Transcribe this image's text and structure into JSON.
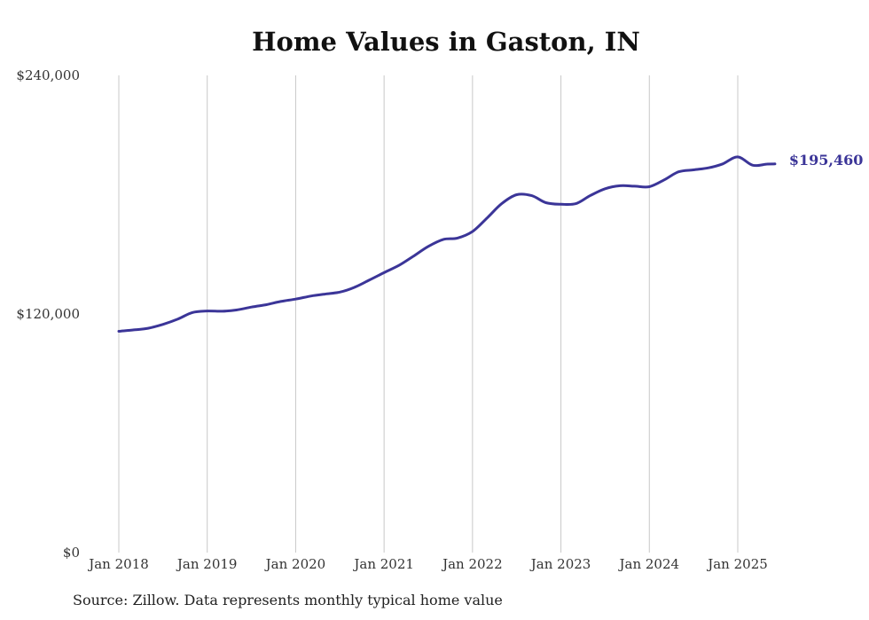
{
  "chart_data": {
    "type": "line",
    "title": "Home Values in Gaston, IN",
    "xlabel": "",
    "ylabel": "",
    "x_ticks": [
      {
        "label": "Jan 2018",
        "t": 2018.0
      },
      {
        "label": "Jan 2019",
        "t": 2019.0
      },
      {
        "label": "Jan 2020",
        "t": 2020.0
      },
      {
        "label": "Jan 2021",
        "t": 2021.0
      },
      {
        "label": "Jan 2022",
        "t": 2022.0
      },
      {
        "label": "Jan 2023",
        "t": 2023.0
      },
      {
        "label": "Jan 2024",
        "t": 2024.0
      },
      {
        "label": "Jan 2025",
        "t": 2025.0
      }
    ],
    "y_ticks": [
      {
        "label": "$0",
        "value": 0
      },
      {
        "label": "$120,000",
        "value": 120000
      },
      {
        "label": "$240,000",
        "value": 240000
      }
    ],
    "xlim": [
      2018.0,
      2025.42
    ],
    "ylim": [
      0,
      240000
    ],
    "grid": "vertical",
    "line_color": "#3b3598",
    "end_label": "$195,460",
    "series": [
      {
        "points": [
          [
            2018.0,
            111300
          ],
          [
            2018.17,
            112000
          ],
          [
            2018.33,
            112800
          ],
          [
            2018.5,
            114800
          ],
          [
            2018.67,
            117500
          ],
          [
            2018.83,
            120700
          ],
          [
            2019.0,
            121500
          ],
          [
            2019.17,
            121400
          ],
          [
            2019.33,
            122000
          ],
          [
            2019.5,
            123500
          ],
          [
            2019.67,
            124700
          ],
          [
            2019.83,
            126300
          ],
          [
            2020.0,
            127500
          ],
          [
            2020.17,
            129000
          ],
          [
            2020.33,
            130000
          ],
          [
            2020.5,
            131000
          ],
          [
            2020.67,
            133500
          ],
          [
            2020.83,
            137000
          ],
          [
            2021.0,
            140800
          ],
          [
            2021.17,
            144500
          ],
          [
            2021.33,
            149000
          ],
          [
            2021.5,
            154000
          ],
          [
            2021.67,
            157500
          ],
          [
            2021.83,
            158200
          ],
          [
            2022.0,
            161500
          ],
          [
            2022.17,
            168500
          ],
          [
            2022.33,
            175500
          ],
          [
            2022.5,
            180000
          ],
          [
            2022.67,
            179500
          ],
          [
            2022.83,
            176000
          ],
          [
            2023.0,
            175200
          ],
          [
            2023.17,
            175500
          ],
          [
            2023.33,
            179500
          ],
          [
            2023.5,
            183000
          ],
          [
            2023.67,
            184500
          ],
          [
            2023.83,
            184300
          ],
          [
            2024.0,
            184000
          ],
          [
            2024.17,
            187500
          ],
          [
            2024.33,
            191500
          ],
          [
            2024.5,
            192500
          ],
          [
            2024.67,
            193500
          ],
          [
            2024.83,
            195500
          ],
          [
            2025.0,
            199000
          ],
          [
            2025.17,
            194800
          ],
          [
            2025.33,
            195400
          ],
          [
            2025.42,
            195460
          ]
        ]
      }
    ]
  },
  "source_note": "Source: Zillow. Data represents monthly typical home value"
}
